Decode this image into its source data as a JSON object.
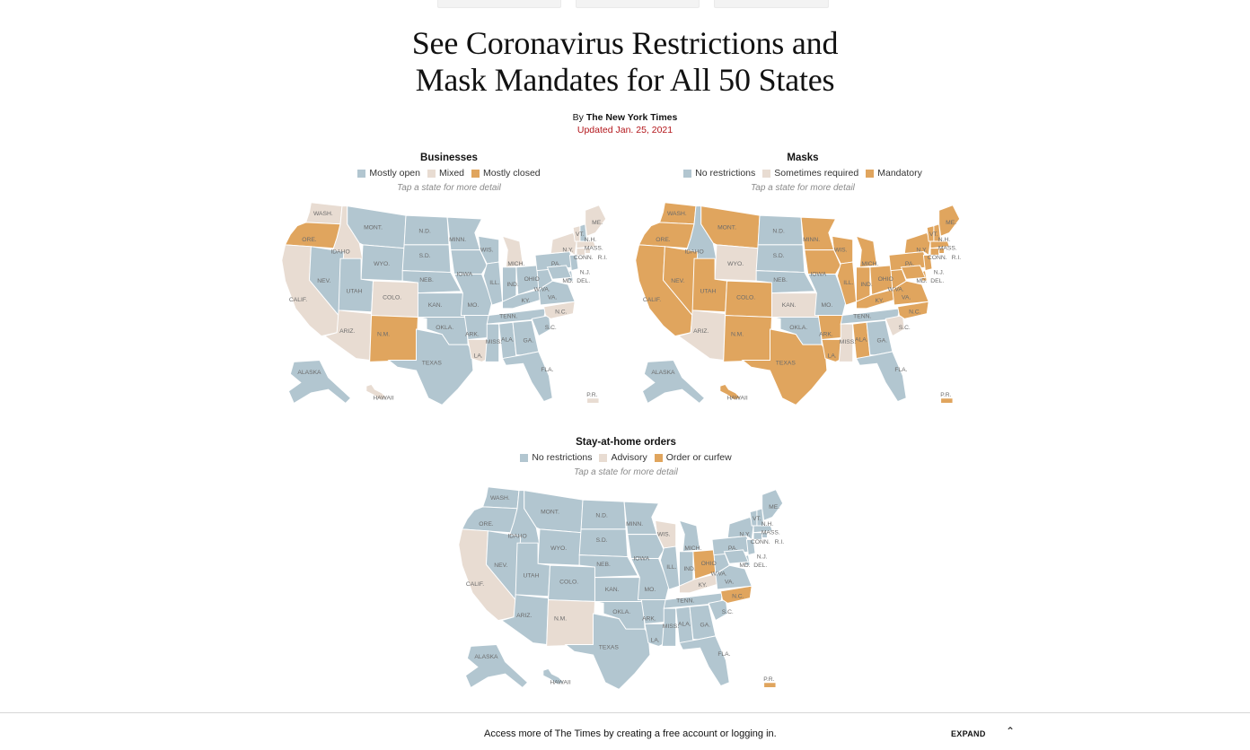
{
  "headline": {
    "line1": "See Coronavirus Restrictions and",
    "line2": "Mask Mandates for All 50 States"
  },
  "byline": {
    "prefix": "By ",
    "author": "The New York Times"
  },
  "updated": "Updated Jan. 25, 2021",
  "colors": {
    "open": "#b2c6d0",
    "mixed": "#e8dcd2",
    "closed": "#e0a55e"
  },
  "maps": {
    "businesses": {
      "title": "Businesses",
      "legend": [
        "Mostly open",
        "Mixed",
        "Mostly closed"
      ],
      "hint": "Tap a state for more detail"
    },
    "masks": {
      "title": "Masks",
      "legend": [
        "No restrictions",
        "Sometimes required",
        "Mandatory"
      ],
      "hint": "Tap a state for more detail"
    },
    "stay": {
      "title": "Stay-at-home orders",
      "legend": [
        "No restrictions",
        "Advisory",
        "Order or curfew"
      ],
      "hint": "Tap a state for more detail"
    }
  },
  "state_labels": {
    "WA": "WASH.",
    "OR": "ORE.",
    "CA": "CALIF.",
    "ID": "IDAHO",
    "NV": "NEV.",
    "MT": "MONT.",
    "WY": "WYO.",
    "UT": "UTAH",
    "AZ": "ARIZ.",
    "CO": "COLO.",
    "NM": "N.M.",
    "ND": "N.D.",
    "SD": "S.D.",
    "NE": "NEB.",
    "KS": "KAN.",
    "OK": "OKLA.",
    "TX": "TEXAS",
    "MN": "MINN.",
    "IA": "IOWA",
    "MO": "MO.",
    "AR": "ARK.",
    "LA": "LA.",
    "WI": "WIS.",
    "IL": "ILL.",
    "MI": "MICH.",
    "IN": "IND.",
    "OH": "OHIO",
    "KY": "KY.",
    "TN": "TENN.",
    "MS": "MISS.",
    "AL": "ALA.",
    "GA": "GA.",
    "FL": "FLA.",
    "SC": "S.C.",
    "NC": "N.C.",
    "VA": "VA.",
    "WV": "W.VA.",
    "PA": "PA.",
    "NY": "N.Y.",
    "VT": "VT.",
    "NH": "N.H.",
    "ME": "ME.",
    "MA": "MASS.",
    "CT": "CONN.",
    "RI": "R.I.",
    "NJ": "N.J.",
    "DE": "DEL.",
    "MD": "MD.",
    "AK": "ALASKA",
    "HI": "HAWAII",
    "PR": "P.R."
  },
  "status": {
    "businesses": {
      "WA": "mixed",
      "OR": "closed",
      "CA": "mixed",
      "ID": "mixed",
      "NV": "open",
      "MT": "open",
      "WY": "open",
      "UT": "open",
      "AZ": "mixed",
      "CO": "mixed",
      "NM": "closed",
      "ND": "open",
      "SD": "open",
      "NE": "open",
      "KS": "open",
      "OK": "open",
      "TX": "open",
      "MN": "open",
      "IA": "open",
      "MO": "open",
      "AR": "open",
      "LA": "mixed",
      "WI": "open",
      "IL": "open",
      "MI": "mixed",
      "IN": "open",
      "OH": "open",
      "KY": "open",
      "TN": "open",
      "MS": "open",
      "AL": "open",
      "GA": "open",
      "FL": "open",
      "SC": "open",
      "NC": "mixed",
      "VA": "open",
      "WV": "open",
      "PA": "open",
      "NY": "mixed",
      "VT": "mixed",
      "NH": "open",
      "ME": "mixed",
      "MA": "mixed",
      "CT": "mixed",
      "RI": "mixed",
      "NJ": "open",
      "DE": "open",
      "MD": "open",
      "AK": "open",
      "HI": "mixed",
      "PR": "mixed"
    },
    "masks": {
      "WA": "closed",
      "OR": "closed",
      "CA": "closed",
      "ID": "open",
      "NV": "closed",
      "MT": "closed",
      "WY": "mixed",
      "UT": "closed",
      "AZ": "mixed",
      "CO": "closed",
      "NM": "closed",
      "ND": "open",
      "SD": "open",
      "NE": "open",
      "KS": "mixed",
      "OK": "open",
      "TX": "closed",
      "MN": "closed",
      "IA": "closed",
      "MO": "open",
      "AR": "closed",
      "LA": "closed",
      "WI": "closed",
      "IL": "closed",
      "MI": "closed",
      "IN": "closed",
      "OH": "closed",
      "KY": "closed",
      "TN": "open",
      "MS": "mixed",
      "AL": "closed",
      "GA": "open",
      "FL": "open",
      "SC": "mixed",
      "NC": "closed",
      "VA": "closed",
      "WV": "closed",
      "PA": "closed",
      "NY": "closed",
      "VT": "closed",
      "NH": "closed",
      "ME": "closed",
      "MA": "closed",
      "CT": "closed",
      "RI": "closed",
      "NJ": "closed",
      "DE": "closed",
      "MD": "closed",
      "AK": "open",
      "HI": "closed",
      "PR": "closed"
    },
    "stay": {
      "WA": "open",
      "OR": "open",
      "CA": "mixed",
      "ID": "open",
      "NV": "open",
      "MT": "open",
      "WY": "open",
      "UT": "open",
      "AZ": "open",
      "CO": "open",
      "NM": "mixed",
      "ND": "open",
      "SD": "open",
      "NE": "open",
      "KS": "open",
      "OK": "open",
      "TX": "open",
      "MN": "open",
      "IA": "open",
      "MO": "open",
      "AR": "open",
      "LA": "open",
      "WI": "mixed",
      "IL": "open",
      "MI": "open",
      "IN": "open",
      "OH": "closed",
      "KY": "mixed",
      "TN": "open",
      "MS": "open",
      "AL": "open",
      "GA": "open",
      "FL": "open",
      "SC": "open",
      "NC": "closed",
      "VA": "open",
      "WV": "open",
      "PA": "open",
      "NY": "open",
      "VT": "open",
      "NH": "open",
      "ME": "open",
      "MA": "open",
      "CT": "open",
      "RI": "open",
      "NJ": "open",
      "DE": "open",
      "MD": "open",
      "AK": "open",
      "HI": "open",
      "PR": "closed"
    }
  },
  "footer": {
    "text": "Access more of The Times by creating a free account or logging in.",
    "expand": "EXPAND",
    "chevron": "^"
  }
}
